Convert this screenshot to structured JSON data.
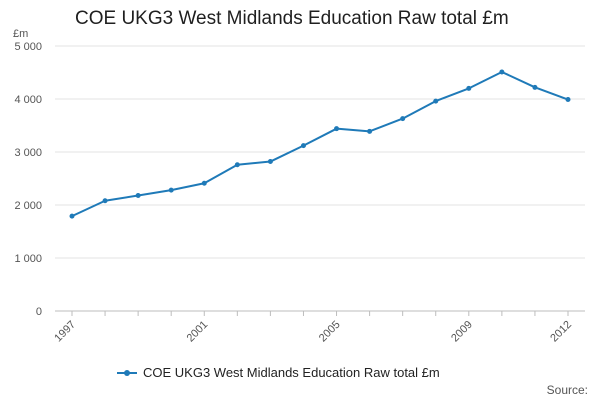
{
  "chart_data": {
    "type": "line",
    "title": "COE UKG3 West Midlands Education Raw total £m",
    "ylabel": "£m",
    "xlabel": "",
    "x": [
      1997,
      1998,
      1999,
      2000,
      2001,
      2002,
      2003,
      2004,
      2005,
      2006,
      2007,
      2008,
      2009,
      2010,
      2011,
      2012
    ],
    "x_tick_labels": [
      "1997",
      "2001",
      "2005",
      "2009",
      "2012"
    ],
    "y_ticks": [
      0,
      1000,
      2000,
      3000,
      4000,
      5000
    ],
    "y_tick_labels": [
      "0",
      "1 000",
      "2 000",
      "3 000",
      "4 000",
      "5 000"
    ],
    "ylim": [
      0,
      5000
    ],
    "xlim": [
      1997,
      2012
    ],
    "grid": true,
    "legend_position": "bottom",
    "series": [
      {
        "name": "COE UKG3 West Midlands Education Raw total £m",
        "color": "#1f7ab8",
        "values": [
          1790,
          2080,
          2180,
          2280,
          2410,
          2760,
          2820,
          3120,
          3440,
          3390,
          3630,
          3960,
          4200,
          4510,
          4220,
          3990
        ]
      }
    ]
  },
  "footer": {
    "source": "Source:"
  }
}
